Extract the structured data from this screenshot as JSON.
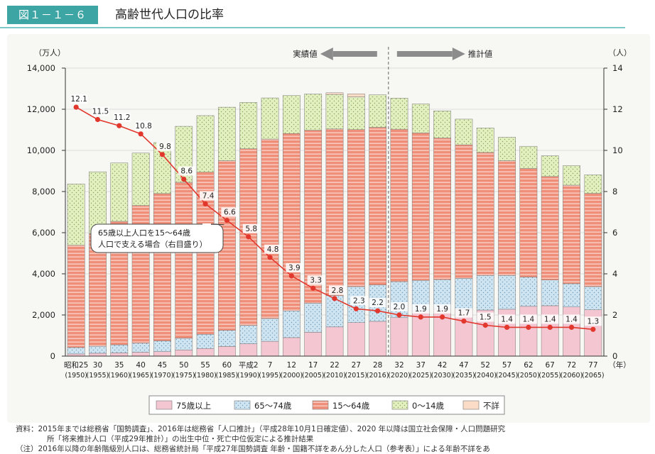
{
  "header": {
    "figure_label": "図１－１－６",
    "title": "高齢世代人口の比率"
  },
  "notes": {
    "source_line1": "資料：2015年までは総務省「国勢調査」、2016年は総務省「人口推計」（平成28年10月1日確定値）、2020 年以降は国立社会保障・人口問題研究",
    "source_line2": "所「将来推計人口（平成29年推計）」の出生中位・死亡中位仮定による推計結果",
    "note_line": "（注）2016年以降の年齢階級別人口は、総務省統計局「平成27年国勢調査 年齢・国籍不詳をあん分した人口（参考表）」による年齢不詳をあ"
  },
  "chart_data": {
    "type": "bar",
    "stacked": true,
    "title": "",
    "left_axis": {
      "unit_label": "（万人）",
      "ylim": [
        0,
        14000
      ],
      "ticks": [
        "0",
        "2,000",
        "4,000",
        "6,000",
        "8,000",
        "10,000",
        "12,000",
        "14,000"
      ]
    },
    "right_axis": {
      "unit_label": "（人）",
      "ylim": [
        0,
        14
      ],
      "ticks": [
        "0",
        "2",
        "4",
        "6",
        "8",
        "10",
        "12",
        "14"
      ]
    },
    "x_unit_label": "（年）",
    "categories_era": [
      "昭和25",
      "30",
      "35",
      "40",
      "45",
      "50",
      "55",
      "60",
      "平成2",
      "7",
      "12",
      "17",
      "22",
      "27",
      "28",
      "32",
      "37",
      "42",
      "47",
      "52",
      "57",
      "62",
      "67",
      "72",
      "77"
    ],
    "categories_year": [
      "(1950)",
      "(1955)",
      "(1960)",
      "(1965)",
      "(1970)",
      "(1975)",
      "(1980)",
      "(1985)",
      "(1990)",
      "(1995)",
      "(2000)",
      "(2005)",
      "(2010)",
      "(2015)",
      "(2016)",
      "(2020)",
      "(2025)",
      "(2030)",
      "(2035)",
      "(2040)",
      "(2045)",
      "(2050)",
      "(2055)",
      "(2060)",
      "(2065)"
    ],
    "series": [
      {
        "name": "75歳以上",
        "color": "#f3c6d2",
        "values": [
          107,
          140,
          160,
          190,
          220,
          300,
          370,
          470,
          600,
          720,
          900,
          1160,
          1420,
          1630,
          1690,
          1870,
          2180,
          2290,
          2260,
          2240,
          2280,
          2420,
          2450,
          2390,
          2250
        ]
      },
      {
        "name": "65～74歳",
        "color": "#c9e1ef",
        "values": [
          310,
          340,
          390,
          440,
          520,
          570,
          690,
          780,
          890,
          1110,
          1300,
          1410,
          1520,
          1750,
          1770,
          1750,
          1500,
          1430,
          1520,
          1680,
          1640,
          1420,
          1250,
          1130,
          1130
        ]
      },
      {
        "name": "15～64歳",
        "color": "#f08f79",
        "values": [
          4970,
          5470,
          6000,
          6690,
          7160,
          7580,
          7880,
          8250,
          8590,
          8720,
          8620,
          8410,
          8100,
          7630,
          7660,
          7410,
          7170,
          6880,
          6490,
          5980,
          5580,
          5280,
          5030,
          4790,
          4530
        ]
      },
      {
        "name": "0～14歳",
        "color": "#dbecb4",
        "values": [
          2980,
          3010,
          2840,
          2550,
          2480,
          2720,
          2750,
          2600,
          2250,
          2000,
          1850,
          1760,
          1680,
          1590,
          1580,
          1510,
          1410,
          1320,
          1250,
          1190,
          1140,
          1080,
          1010,
          950,
          900
        ]
      },
      {
        "name": "不詳",
        "color": "#fbdcc6",
        "values": [
          0,
          0,
          0,
          0,
          0,
          0,
          0,
          0,
          0,
          0,
          0,
          0,
          80,
          150,
          0,
          0,
          0,
          0,
          0,
          0,
          0,
          0,
          0,
          0,
          0
        ]
      }
    ],
    "line_series": {
      "name": "65歳以上人口を15～64歳人口で支える場合（右目盛り）",
      "axis": "right",
      "values": [
        12.1,
        11.5,
        11.2,
        10.8,
        9.8,
        8.6,
        7.4,
        6.6,
        5.8,
        4.8,
        3.9,
        3.3,
        2.8,
        2.3,
        2.2,
        2.0,
        1.9,
        1.9,
        1.7,
        1.5,
        1.4,
        1.4,
        1.4,
        1.4,
        1.3
      ],
      "labels": [
        "12.1",
        "11.5",
        "11.2",
        "10.8",
        "9.8",
        "8.6",
        "7.4",
        "6.6",
        "5.8",
        "4.8",
        "3.9",
        "3.3",
        "2.8",
        "2.3",
        "2.2",
        "2.0",
        "1.9",
        "1.9",
        "1.7",
        "1.5",
        "1.4",
        "1.4",
        "1.4",
        "1.4",
        "1.3"
      ],
      "color": "#e2372c"
    },
    "annotation": {
      "text_line1": "65歳以上人口を15～64歳",
      "text_line2": "人口で支える場合（右目盛り）"
    },
    "period_markers": {
      "actual_label": "実績値",
      "projection_label": "推計値",
      "arrow_color": "#8c8c8c"
    },
    "legend": {
      "position": "bottom",
      "items": [
        "75歳以上",
        "65～74歳",
        "15～64歳",
        "0～14歳",
        "不詳"
      ]
    },
    "grid": true
  }
}
